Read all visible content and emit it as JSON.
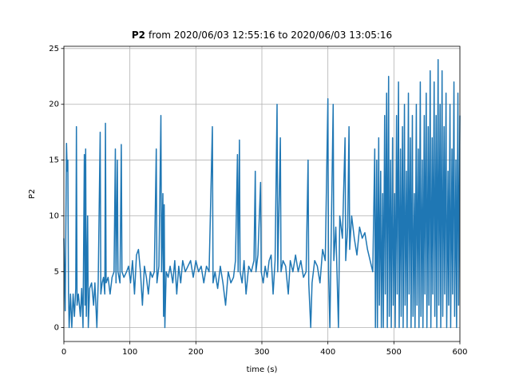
{
  "chart_data": {
    "type": "line",
    "title": {
      "bold": "P2",
      "text": "from 2020/06/03 12:55:16 to 2020/06/03 13:05:16"
    },
    "xlabel": "time (s)",
    "ylabel": "P2",
    "color": "#1f77b4",
    "grid": true,
    "xlim": [
      0,
      600
    ],
    "ylim": [
      -1.25,
      25.2
    ],
    "xticks": [
      0,
      100,
      200,
      300,
      400,
      500,
      600
    ],
    "yticks": [
      0,
      5,
      10,
      15,
      20,
      25
    ],
    "x": [
      0,
      2,
      4,
      5,
      6,
      7,
      8,
      10,
      12,
      14,
      16,
      18,
      19,
      20,
      22,
      25,
      27,
      29,
      31,
      32,
      33,
      34,
      36,
      37,
      39,
      42,
      45,
      47,
      50,
      52,
      55,
      56,
      58,
      60,
      62,
      63,
      64,
      67,
      70,
      73,
      76,
      78,
      79,
      81,
      82,
      85,
      87,
      88,
      91,
      95,
      98,
      101,
      104,
      107,
      110,
      113,
      116,
      119,
      122,
      125,
      128,
      131,
      134,
      137,
      140,
      141,
      144,
      147,
      148,
      150,
      151,
      152,
      153,
      155,
      158,
      161,
      165,
      168,
      171,
      174,
      177,
      180,
      184,
      188,
      192,
      196,
      200,
      204,
      208,
      212,
      216,
      220,
      225,
      226,
      229,
      233,
      237,
      241,
      245,
      249,
      253,
      257,
      260,
      263,
      264,
      266,
      267,
      270,
      273,
      276,
      280,
      284,
      288,
      290,
      291,
      294,
      298,
      299,
      302,
      305,
      308,
      311,
      314,
      317,
      320,
      323,
      324,
      328,
      329,
      332,
      336,
      340,
      343,
      347,
      351,
      355,
      359,
      363,
      367,
      370,
      371,
      374,
      376,
      380,
      384,
      388,
      392,
      396,
      400,
      401,
      403,
      405,
      408,
      409,
      412,
      416,
      418,
      422,
      426,
      427,
      430,
      432,
      433,
      436,
      440,
      444,
      448,
      452,
      456,
      460,
      464,
      468,
      471,
      472,
      474,
      475,
      477,
      478,
      480,
      481,
      483,
      484,
      486,
      487,
      489,
      490,
      492,
      493,
      495,
      496,
      498,
      499,
      501,
      502,
      504,
      505,
      507,
      508,
      510,
      511,
      513,
      514,
      516,
      517,
      519,
      520,
      522,
      523,
      525,
      526,
      528,
      529,
      531,
      532,
      534,
      535,
      537,
      538,
      540,
      541,
      543,
      544,
      546,
      547,
      549,
      550,
      552,
      553,
      555,
      556,
      558,
      559,
      561,
      562,
      564,
      565,
      567,
      568,
      570,
      571,
      573,
      574,
      576,
      577,
      579,
      580,
      582,
      583,
      585,
      586,
      588,
      589,
      591,
      592,
      594,
      595,
      597,
      598,
      600
    ],
    "values": [
      8,
      1.5,
      16.5,
      14,
      15,
      3,
      0,
      3,
      0,
      3,
      1,
      3.5,
      18,
      2,
      3,
      1,
      3.5,
      0,
      15.5,
      2,
      16,
      1,
      10,
      0,
      3.5,
      4,
      2,
      4,
      0,
      4,
      17.5,
      3,
      4,
      4.5,
      3,
      18.3,
      4,
      4.5,
      3,
      4.5,
      5,
      16,
      4,
      15,
      5,
      4,
      16.4,
      5,
      4.5,
      5,
      5.5,
      4,
      6,
      3,
      6.5,
      7,
      5,
      2,
      5.5,
      4.5,
      3,
      5,
      4.5,
      5,
      16,
      4,
      5.5,
      19,
      5,
      12,
      1,
      11,
      0,
      5,
      4.5,
      5.5,
      4,
      6,
      3,
      5.5,
      4,
      6,
      5,
      5.5,
      6,
      4.5,
      6,
      5,
      5.5,
      4,
      5.5,
      5,
      18,
      4,
      5,
      3.5,
      5.5,
      4,
      2,
      5,
      4,
      4.5,
      6,
      15.5,
      5,
      16.8,
      5,
      4,
      6,
      3,
      5.5,
      5,
      6,
      14,
      5,
      6.5,
      13,
      5,
      4,
      5.5,
      4.5,
      6,
      6.5,
      3,
      6,
      20,
      5,
      17,
      5,
      6,
      5.5,
      3,
      6,
      5,
      6.5,
      5,
      6,
      4.5,
      5,
      15,
      4,
      0,
      4,
      6,
      5.5,
      4,
      7,
      6,
      20.5,
      5,
      0,
      8,
      20,
      6,
      9,
      0,
      10,
      8,
      17,
      6,
      9,
      18,
      7,
      10,
      8,
      6.5,
      9,
      8,
      8.5,
      7,
      6,
      5,
      16,
      0,
      15,
      0,
      17,
      2,
      14,
      0,
      12,
      0,
      19,
      3,
      21,
      0,
      22.5,
      1,
      15,
      0,
      17,
      2,
      12,
      0,
      19,
      3,
      22,
      0,
      16,
      1,
      18,
      0,
      20,
      2,
      14,
      0,
      21,
      3,
      17,
      0,
      19,
      1,
      12,
      0,
      20,
      2,
      16,
      0,
      22,
      1,
      15,
      0,
      19,
      3,
      21,
      0,
      18,
      2,
      23,
      0,
      17,
      3,
      22,
      1,
      19,
      0,
      24,
      2,
      20,
      0,
      23,
      1,
      18,
      3,
      21,
      0,
      14,
      2,
      20,
      0,
      16,
      3,
      22,
      1,
      15,
      0,
      21,
      2,
      19
    ]
  }
}
